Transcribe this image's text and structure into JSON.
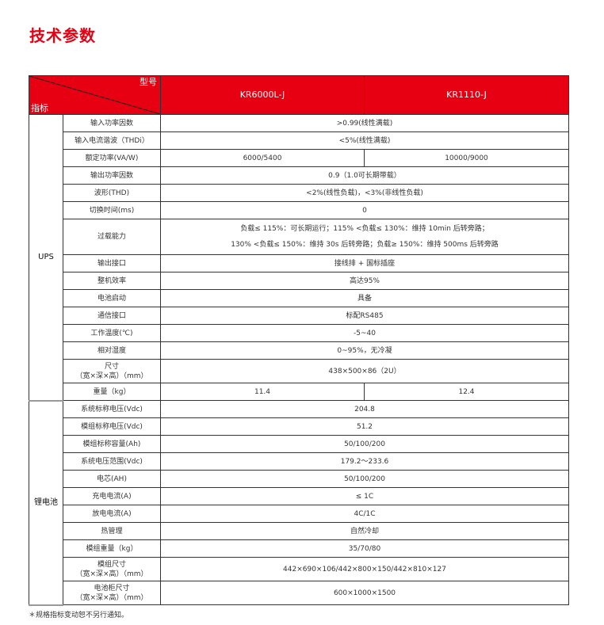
{
  "title": "技术参数",
  "table": {
    "header": {
      "model_label": "型号",
      "index_label": "指标",
      "models": [
        "KR6000L-J",
        "KR1110-J"
      ]
    },
    "groups": [
      {
        "name": "UPS",
        "rows": [
          {
            "label": "输入功率因数",
            "value": ">0.99(线性满载)"
          },
          {
            "label": "输入电流谐波（THDi）",
            "value": "<5%(线性满载)"
          },
          {
            "label": "额定功率(VA/W)",
            "values": [
              "6000/5400",
              "10000/9000"
            ]
          },
          {
            "label": "输出功率因数",
            "value": "0.9（1.0可长期带载）"
          },
          {
            "label": "波形(THD)",
            "value": "<2%(线性负载)，<3%(非线性负载)"
          },
          {
            "label": "切换时间(ms)",
            "value": "0"
          },
          {
            "label": "过载能力",
            "value": "负载≤ 115%：可长期运行；115% <负载≤ 130%：维持 10min 后转旁路；\n130% <负载≤ 150%：维持 30s 后转旁路；负载≥ 150%：维持 500ms 后转旁路",
            "size": "tall"
          },
          {
            "label": "输出接口",
            "value": "接线排 + 国标插座"
          },
          {
            "label": "整机效率",
            "value": "高达95%"
          },
          {
            "label": "电池启动",
            "value": "具备"
          },
          {
            "label": "通信接口",
            "value": "标配RS485"
          },
          {
            "label": "工作温度(℃)",
            "value": "-5~40"
          },
          {
            "label": "相对湿度",
            "value": "0~95%，无冷凝"
          },
          {
            "label": "尺寸\n（宽×深×高）（mm）",
            "value": "438×500×86（2U）",
            "size": "mid"
          },
          {
            "label": "重量（kg）",
            "values": [
              "11.4",
              "12.4"
            ]
          }
        ]
      },
      {
        "name": "锂电池",
        "rows": [
          {
            "label": "系统标称电压(Vdc)",
            "value": "204.8"
          },
          {
            "label": "模组标称电压(Vdc)",
            "value": "51.2"
          },
          {
            "label": "模组标称容量(Ah)",
            "value": "50/100/200"
          },
          {
            "label": "系统电压范围(Vdc)",
            "value": "179.2～233.6"
          },
          {
            "label": "电芯(AH)",
            "value": "50/100/200"
          },
          {
            "label": "充电电流(A)",
            "value": "≤ 1C"
          },
          {
            "label": "放电电流(A)",
            "value": "4C/1C"
          },
          {
            "label": "热管理",
            "value": "自然冷却"
          },
          {
            "label": "模组重量（kg）",
            "value": "35/70/80"
          },
          {
            "label": "模组尺寸\n（宽×深×高）（mm）",
            "value": "442×690×106/442×800×150/442×810×127",
            "size": "mid"
          },
          {
            "label": "电池柜尺寸\n（宽×深×高）（mm）",
            "value": "600×1000×1500",
            "size": "mid"
          }
        ]
      }
    ]
  },
  "footnote": "＊规格指标变动恕不另行通知。",
  "colors": {
    "accent": "#e60012"
  }
}
